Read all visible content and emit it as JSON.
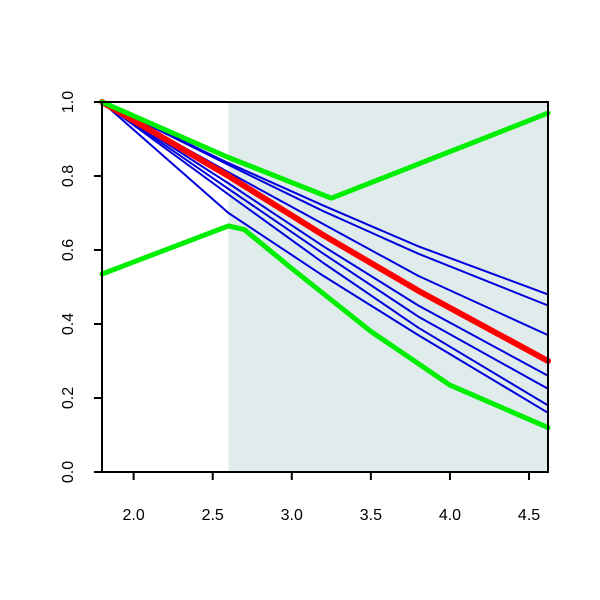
{
  "chart_data": {
    "type": "line",
    "title": "",
    "xlabel": "",
    "ylabel": "",
    "xlim": [
      1.8,
      4.62
    ],
    "ylim": [
      0.0,
      1.0
    ],
    "x_ticks": [
      2.0,
      2.5,
      3.0,
      3.5,
      4.0,
      4.5
    ],
    "x_tick_labels": [
      "2.0",
      "2.5",
      "3.0",
      "3.5",
      "4.0",
      "4.5"
    ],
    "y_ticks": [
      0.0,
      0.2,
      0.4,
      0.6,
      0.8,
      1.0
    ],
    "y_tick_labels": [
      "0.0",
      "0.2",
      "0.4",
      "0.6",
      "0.8",
      "1.0"
    ],
    "grid": false,
    "legend": "none",
    "shaded_region": {
      "x_start": 2.6,
      "x_end": 4.62,
      "color": "#e0ecec"
    },
    "colors": {
      "thin_lines": "#0000dd",
      "central_line": "#ff0000",
      "envelope": "#00ee00"
    },
    "series": [
      {
        "role": "thin",
        "x": [
          1.8,
          2.6,
          3.2,
          3.8,
          4.62
        ],
        "y": [
          1.0,
          0.835,
          0.72,
          0.61,
          0.48
        ]
      },
      {
        "role": "thin",
        "x": [
          1.8,
          2.6,
          3.2,
          3.8,
          4.62
        ],
        "y": [
          1.0,
          0.83,
          0.705,
          0.59,
          0.45
        ]
      },
      {
        "role": "thin",
        "x": [
          1.8,
          2.6,
          3.2,
          3.8,
          4.62
        ],
        "y": [
          1.0,
          0.81,
          0.67,
          0.53,
          0.37
        ]
      },
      {
        "role": "thin",
        "x": [
          1.8,
          2.6,
          3.2,
          3.8,
          4.62
        ],
        "y": [
          1.0,
          0.78,
          0.61,
          0.45,
          0.26
        ]
      },
      {
        "role": "thin",
        "x": [
          1.8,
          2.6,
          3.2,
          3.8,
          4.62
        ],
        "y": [
          1.0,
          0.765,
          0.59,
          0.42,
          0.225
        ]
      },
      {
        "role": "thin",
        "x": [
          1.8,
          2.6,
          3.2,
          3.8,
          4.62
        ],
        "y": [
          1.0,
          0.75,
          0.565,
          0.39,
          0.18
        ]
      },
      {
        "role": "thin",
        "x": [
          1.8,
          2.6,
          3.2,
          3.8,
          4.62
        ],
        "y": [
          1.0,
          0.7,
          0.53,
          0.37,
          0.16
        ]
      },
      {
        "role": "central",
        "x": [
          1.8,
          2.6,
          3.2,
          3.8,
          4.62
        ],
        "y": [
          1.0,
          0.8,
          0.64,
          0.49,
          0.3
        ]
      },
      {
        "role": "envelope",
        "x": [
          1.8,
          2.6,
          3.25,
          4.62
        ],
        "y": [
          1.0,
          0.85,
          0.74,
          0.97
        ]
      },
      {
        "role": "envelope",
        "x": [
          1.8,
          2.6,
          2.7,
          3.0,
          3.5,
          4.0,
          4.62
        ],
        "y": [
          0.535,
          0.665,
          0.655,
          0.55,
          0.38,
          0.235,
          0.12
        ]
      }
    ]
  }
}
